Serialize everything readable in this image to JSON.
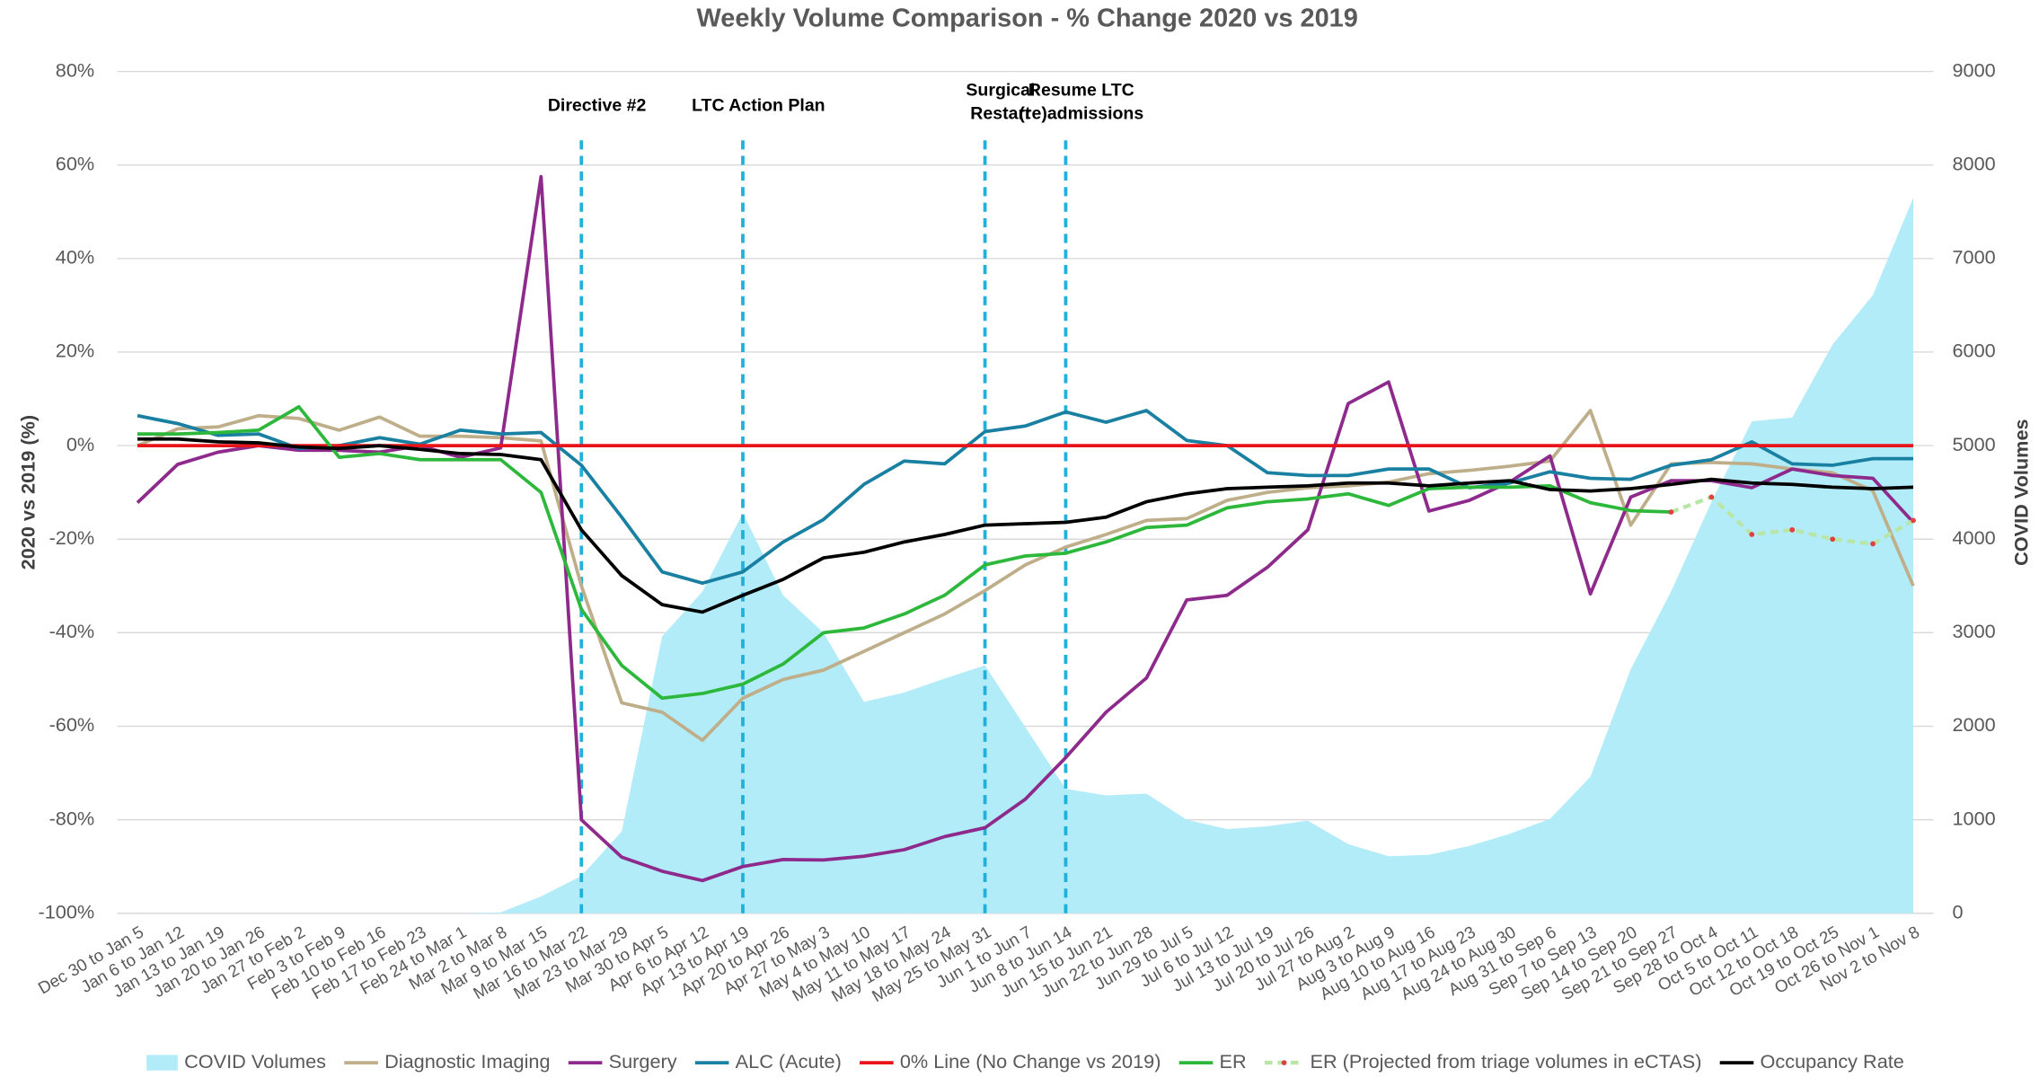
{
  "chart_data": {
    "type": "line",
    "title": "Weekly Volume Comparison - % Change 2020 vs 2019",
    "ylabel": "2020 vs 2019 (%)",
    "y2label": "COVID Volumes",
    "categories": [
      "Dec 30 to Jan 5",
      "Jan 6 to Jan 12",
      "Jan 13 to Jan 19",
      "Jan 20 to Jan 26",
      "Jan 27 to Feb 2",
      "Feb 3 to Feb 9",
      "Feb 10 to Feb 16",
      "Feb 17 to Feb 23",
      "Feb 24 to Mar 1",
      "Mar 2 to Mar 8",
      "Mar 9 to Mar 15",
      "Mar 16 to Mar 22",
      "Mar 23 to Mar 29",
      "Mar 30 to Apr 5",
      "Apr 6 to Apr 12",
      "Apr 13 to Apr 19",
      "Apr 20 to Apr 26",
      "Apr 27 to May 3",
      "May 4 to May 10",
      "May 11 to May 17",
      "May 18 to May 24",
      "May 25 to May 31",
      "Jun 1 to Jun 7",
      "Jun 8 to Jun 14",
      "Jun 15 to Jun 21",
      "Jun 22 to Jun 28",
      "Jun 29 to Jul 5",
      "Jul 6 to Jul 12",
      "Jul 13 to Jul 19",
      "Jul 20 to Jul 26",
      "Jul 27 to Aug 2",
      "Aug 3 to Aug 9",
      "Aug 10 to Aug 16",
      "Aug 17 to Aug 23",
      "Aug 24 to Aug 30",
      "Aug 31 to Sep 6",
      "Sep 7 to Sep 13",
      "Sep 14 to Sep 20",
      "Sep 21 to Sep 27",
      "Sep 28 to Oct 4",
      "Oct 5 to Oct 11",
      "Oct 12 to Oct 18",
      "Oct 19 to Oct 25",
      "Oct 26 to Nov 1",
      "Nov 2 to Nov 8"
    ],
    "ylim": [
      -100,
      80
    ],
    "yticks": [
      {
        "value": -100,
        "label": "-100%"
      },
      {
        "value": -80,
        "label": "-80%"
      },
      {
        "value": -60,
        "label": "-60%"
      },
      {
        "value": -40,
        "label": "-40%"
      },
      {
        "value": -20,
        "label": "-20%"
      },
      {
        "value": 0,
        "label": "0%"
      },
      {
        "value": 20,
        "label": "20%"
      },
      {
        "value": 40,
        "label": "40%"
      },
      {
        "value": 60,
        "label": "60%"
      },
      {
        "value": 80,
        "label": "80%"
      }
    ],
    "y2lim": [
      0,
      9000
    ],
    "y2ticks": [
      0,
      1000,
      2000,
      3000,
      4000,
      5000,
      6000,
      7000,
      8000,
      9000
    ],
    "grid": true,
    "legend": "bottom",
    "series": [
      {
        "name": "COVID Volumes",
        "color": "#b3ecf9",
        "style": "area",
        "axis": "y2",
        "values": [
          0,
          0,
          0,
          0,
          0,
          0,
          0,
          0,
          0,
          10,
          180,
          400,
          875,
          2960,
          3440,
          4280,
          3400,
          3000,
          2260,
          2360,
          2510,
          2650,
          1990,
          1330,
          1260,
          1280,
          1000,
          900,
          930,
          990,
          740,
          610,
          625,
          720,
          850,
          1010,
          1460,
          2610,
          3440,
          4400,
          5260,
          5300,
          6080,
          6610,
          7650
        ]
      },
      {
        "name": "Diagnostic Imaging",
        "color": "#bfae8a",
        "style": "line",
        "values": [
          0,
          3.6,
          4,
          6.4,
          5.8,
          3.3,
          6.1,
          2,
          2,
          1.7,
          1,
          -30,
          -55,
          -57,
          -63,
          -54,
          -50,
          -48,
          -44,
          -40,
          -36,
          -31,
          -25.5,
          -21.7,
          -19,
          -16,
          -15.6,
          -11.7,
          -10,
          -9,
          -8.6,
          -7.8,
          -6,
          -5.3,
          -4.4,
          -3.3,
          7.5,
          -17,
          -3.9,
          -3.6,
          -3.9,
          -5,
          -5.8,
          -9.7,
          -30
        ]
      },
      {
        "name": "Surgery",
        "color": "#8e2a8c",
        "style": "line",
        "values": [
          -12.2,
          -4,
          -1.4,
          0,
          -1,
          -1,
          -1.4,
          0,
          -2.5,
          -0.5,
          57.5,
          -80,
          -88,
          -91,
          -93,
          -90,
          -88.5,
          -88.6,
          -87.8,
          -86.4,
          -83.6,
          -81.7,
          -75.6,
          -66.7,
          -57,
          -49.7,
          -33,
          -32,
          -26,
          -18,
          9,
          13.6,
          -14,
          -11.7,
          -7.8,
          -2.2,
          -31.7,
          -11,
          -7.5,
          -7.5,
          -9,
          -5,
          -6.4,
          -7,
          -16.4
        ]
      },
      {
        "name": "ALC (Acute)",
        "color": "#1a80a2",
        "style": "line",
        "values": [
          6.4,
          4.7,
          2.2,
          2.5,
          -0.6,
          0,
          1.7,
          0.3,
          3.3,
          2.5,
          2.8,
          -4.2,
          -15.3,
          -27,
          -29.4,
          -27,
          -20.6,
          -15.8,
          -8.3,
          -3.3,
          -3.9,
          3,
          4.2,
          7.2,
          5,
          7.5,
          1.1,
          0,
          -5.8,
          -6.4,
          -6.4,
          -5,
          -5,
          -9,
          -8,
          -5.6,
          -7,
          -7.2,
          -4.2,
          -3,
          0.8,
          -3.9,
          -4.2,
          -2.8,
          -2.8
        ]
      },
      {
        "name": "0% Line (No Change vs 2019)",
        "color": "#e8141a",
        "style": "line",
        "values": [
          0,
          0,
          0,
          0,
          0,
          0,
          0,
          0,
          0,
          0,
          0,
          0,
          0,
          0,
          0,
          0,
          0,
          0,
          0,
          0,
          0,
          0,
          0,
          0,
          0,
          0,
          0,
          0,
          0,
          0,
          0,
          0,
          0,
          0,
          0,
          0,
          0,
          0,
          0,
          0,
          0,
          0,
          0,
          0,
          0
        ]
      },
      {
        "name": "ER",
        "color": "#2db83c",
        "style": "line",
        "values": [
          2.5,
          2.5,
          2.8,
          3.3,
          8.3,
          -2.5,
          -1.7,
          -3,
          -3,
          -3,
          -10,
          -35,
          -47,
          -54,
          -53,
          -51,
          -46.7,
          -40,
          -39,
          -36,
          -32,
          -25.5,
          -23.6,
          -23,
          -20.6,
          -17.5,
          -17,
          -13.3,
          -12,
          -11.4,
          -10.3,
          -12.8,
          -9.2,
          -8.9,
          -8.9,
          -8.6,
          -12.2,
          -13.9,
          -14.2,
          null,
          null,
          null,
          null,
          null,
          null
        ]
      },
      {
        "name": "ER (Projected from triage volumes in eCTAS)",
        "color": "#b7e6a6",
        "marker_color": "#e04040",
        "style": "dashed-marker",
        "values": [
          null,
          null,
          null,
          null,
          null,
          null,
          null,
          null,
          null,
          null,
          null,
          null,
          null,
          null,
          null,
          null,
          null,
          null,
          null,
          null,
          null,
          null,
          null,
          null,
          null,
          null,
          null,
          null,
          null,
          null,
          null,
          null,
          null,
          null,
          null,
          null,
          null,
          null,
          -14.2,
          -11,
          -19,
          -18,
          -20,
          -21,
          -16
        ]
      },
      {
        "name": "Occupancy Rate",
        "color": "#000000",
        "style": "line",
        "values": [
          1.4,
          1.4,
          0.8,
          0.6,
          -0.3,
          -0.6,
          0,
          -0.8,
          -1.7,
          -1.9,
          -3,
          -18,
          -27.8,
          -34,
          -35.6,
          -32,
          -28.6,
          -24,
          -22.8,
          -20.6,
          -19,
          -17,
          -16.7,
          -16.4,
          -15.3,
          -12,
          -10.3,
          -9.2,
          -8.9,
          -8.6,
          -8,
          -8,
          -8.6,
          -8,
          -7.5,
          -9.4,
          -9.7,
          -9.2,
          -8.3,
          -7.2,
          -8,
          -8.3,
          -8.9,
          -9.2,
          -8.9
        ]
      }
    ],
    "annotations": [
      {
        "at": "Mar 16 to Mar 22",
        "lines": [
          "Directive #2"
        ],
        "color": "#1fb0dc"
      },
      {
        "at": "Apr 13 to Apr 19",
        "lines": [
          "LTC Action Plan"
        ],
        "color": "#1fb0dc"
      },
      {
        "at": "May 25 to May 31",
        "lines": [
          "Surgical",
          "Restart"
        ],
        "color": "#1fb0dc"
      },
      {
        "at": "Jun 8 to Jun 14",
        "lines": [
          "Resume LTC",
          "(re)admissions"
        ],
        "color": "#1fb0dc"
      }
    ]
  }
}
